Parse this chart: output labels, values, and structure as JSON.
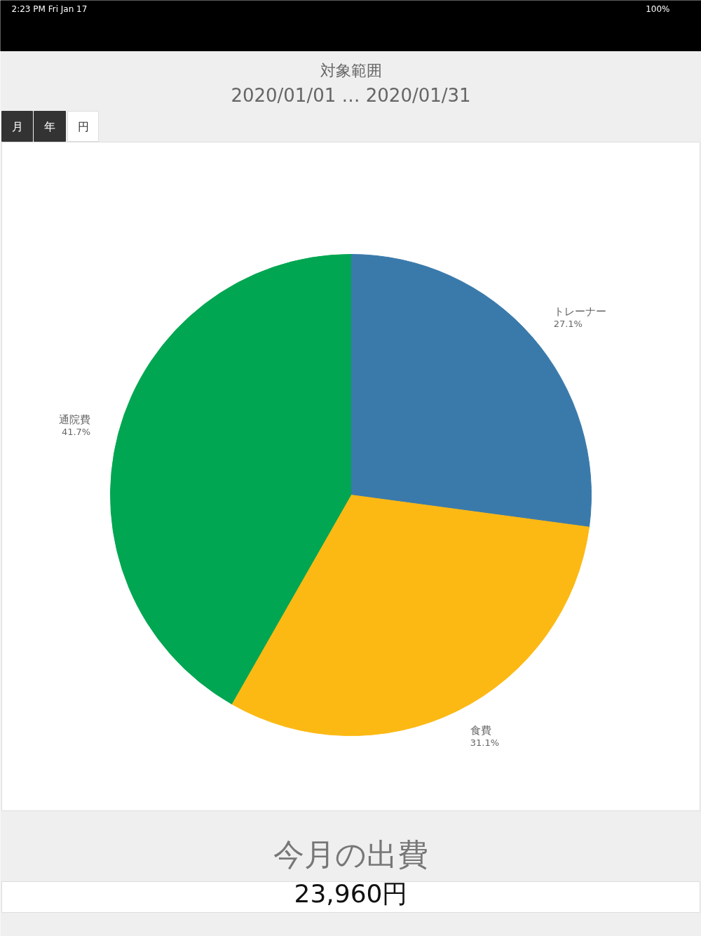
{
  "chart_data": {
    "type": "pie",
    "title": "対象範囲",
    "subtitle": "2020/01/01 … 2020/01/31",
    "categories": [
      "トレーナー",
      "食費",
      "通院費"
    ],
    "values": [
      27.1,
      31.1,
      41.7
    ],
    "colors": [
      "#3a7aab",
      "#fcb914",
      "#00a651"
    ],
    "value_labels": [
      "27.1%",
      "31.1%",
      "41.7%"
    ],
    "annotations": [
      "2:23 PM   Fri Jan 17",
      "100%",
      "月",
      "年",
      "円",
      "今月の出費",
      "23,960円"
    ]
  }
}
